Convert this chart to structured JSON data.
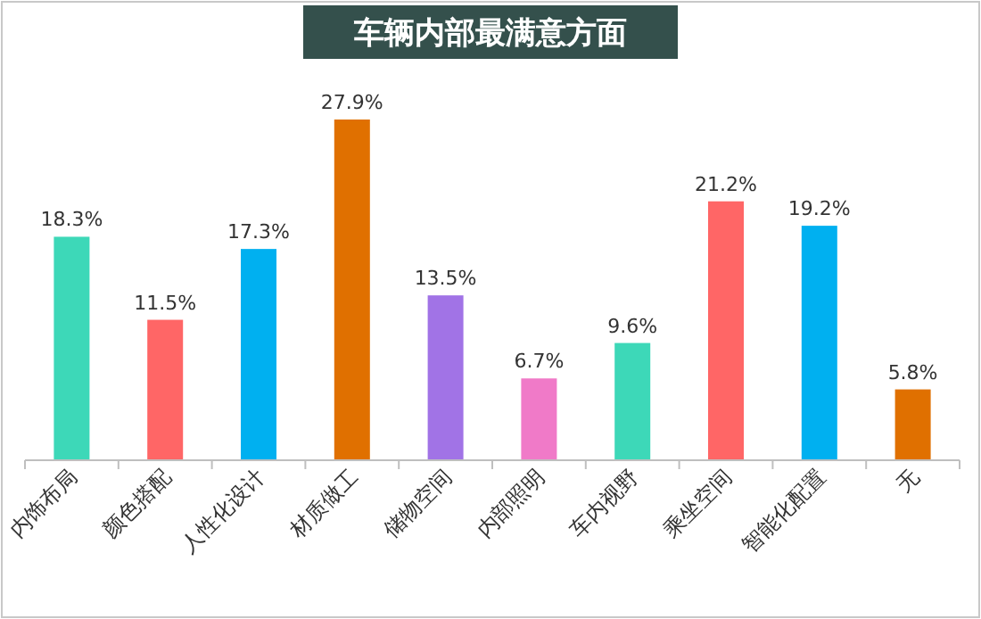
{
  "chart_data": {
    "type": "bar",
    "title": "车辆内部最满意方面",
    "categories": [
      "内饰布局",
      "颜色搭配",
      "人性化设计",
      "材质做工",
      "储物空间",
      "内部照明",
      "车内视野",
      "乘坐空间",
      "智能化配置",
      "无"
    ],
    "values": [
      18.3,
      11.5,
      17.3,
      27.9,
      13.5,
      6.7,
      9.6,
      21.2,
      19.2,
      5.8
    ],
    "colors": [
      "#3dd8b8",
      "#ff6666",
      "#00b0f0",
      "#e07000",
      "#a173e6",
      "#f07ac8",
      "#3dd8b8",
      "#ff6666",
      "#00b0f0",
      "#e07000"
    ],
    "value_labels": [
      "18.3%",
      "11.5%",
      "17.3%",
      "27.9%",
      "13.5%",
      "6.7%",
      "9.6%",
      "21.2%",
      "19.2%",
      "5.8%"
    ]
  }
}
